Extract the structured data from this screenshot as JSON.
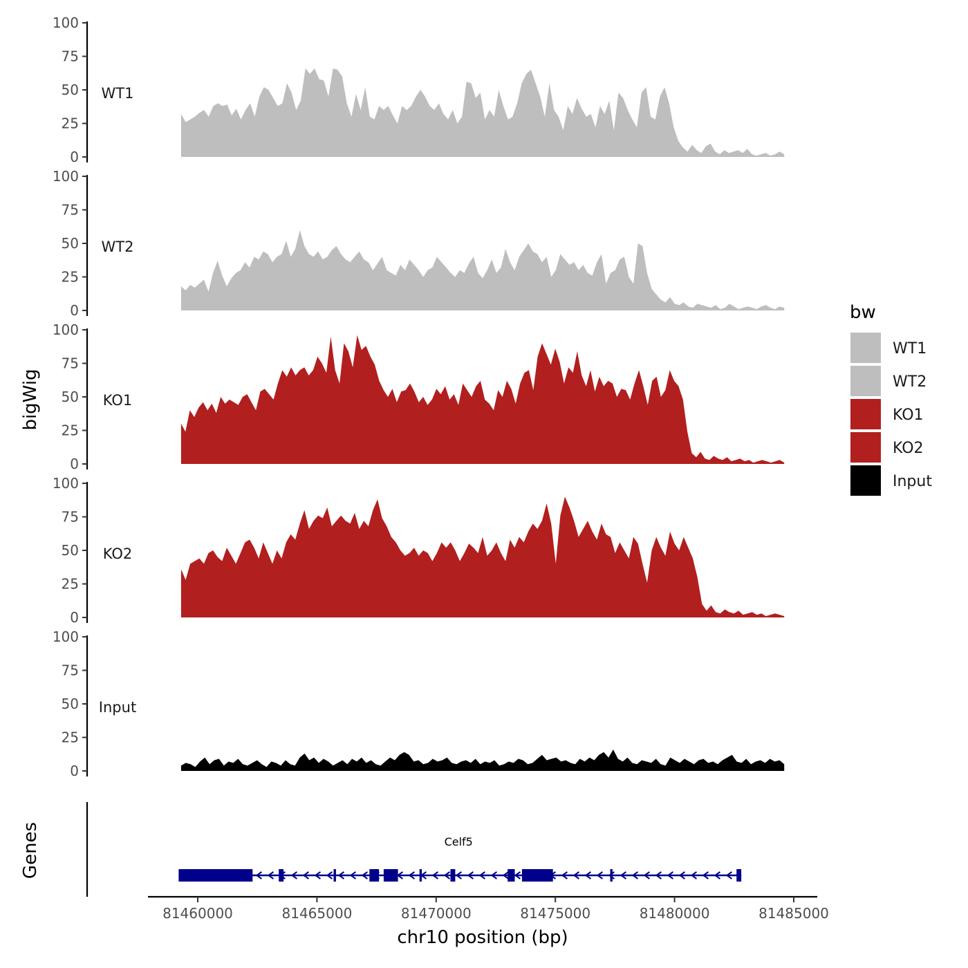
{
  "chart_data": {
    "type": "area",
    "title": "",
    "xlabel": "chr10 position (bp)",
    "ylabel": "bigWig",
    "genes_panel_label": "Genes",
    "xlim": [
      81458500,
      81485500
    ],
    "x_ticks": [
      81460000,
      81465000,
      81470000,
      81475000,
      81480000,
      81485000
    ],
    "x_tick_labels": [
      "81460000",
      "81465000",
      "81470000",
      "81475000",
      "81480000",
      "81485000"
    ],
    "ylim": [
      0,
      100
    ],
    "y_ticks": [
      0,
      25,
      50,
      75,
      100
    ],
    "y_tick_labels": [
      "0",
      "25",
      "50",
      "75",
      "100"
    ],
    "x_start": 81459300,
    "x_end": 81484600,
    "legend": {
      "title": "bw",
      "position": "right",
      "entries": [
        {
          "label": "WT1",
          "color": "#bebebe"
        },
        {
          "label": "WT2",
          "color": "#bebebe"
        },
        {
          "label": "KO1",
          "color": "#b21f1f"
        },
        {
          "label": "KO2",
          "color": "#b21f1f"
        },
        {
          "label": "Input",
          "color": "#000000"
        }
      ]
    },
    "series": [
      {
        "name": "WT1",
        "color": "#bebebe",
        "values": [
          32,
          26,
          28,
          30,
          33,
          35,
          30,
          38,
          40,
          38,
          39,
          31,
          36,
          28,
          35,
          40,
          30,
          45,
          52,
          50,
          44,
          38,
          40,
          55,
          48,
          35,
          42,
          66,
          62,
          66,
          58,
          57,
          45,
          66,
          65,
          60,
          40,
          30,
          47,
          35,
          52,
          30,
          28,
          38,
          35,
          38,
          31,
          25,
          38,
          35,
          38,
          45,
          50,
          45,
          38,
          35,
          40,
          32,
          28,
          35,
          25,
          30,
          56,
          55,
          44,
          48,
          28,
          35,
          30,
          50,
          38,
          28,
          30,
          40,
          55,
          62,
          65,
          55,
          45,
          30,
          55,
          35,
          30,
          20,
          38,
          32,
          44,
          36,
          30,
          32,
          22,
          38,
          32,
          42,
          20,
          48,
          44,
          35,
          28,
          22,
          48,
          52,
          30,
          28,
          45,
          52,
          40,
          22,
          12,
          7,
          4,
          9,
          5,
          3,
          8,
          10,
          4,
          2,
          5,
          3,
          4,
          5,
          3,
          6,
          2,
          1,
          2,
          3,
          1,
          2,
          4,
          2
        ]
      },
      {
        "name": "WT2",
        "color": "#bebebe",
        "values": [
          18,
          15,
          19,
          17,
          20,
          23,
          14,
          28,
          37,
          26,
          18,
          24,
          28,
          30,
          36,
          32,
          40,
          38,
          44,
          42,
          36,
          40,
          42,
          52,
          40,
          46,
          60,
          48,
          42,
          40,
          44,
          38,
          40,
          45,
          48,
          42,
          38,
          36,
          40,
          44,
          38,
          36,
          30,
          35,
          40,
          30,
          28,
          26,
          34,
          30,
          38,
          34,
          30,
          25,
          30,
          32,
          40,
          36,
          32,
          28,
          25,
          30,
          28,
          35,
          40,
          28,
          24,
          30,
          38,
          28,
          32,
          46,
          36,
          30,
          40,
          45,
          50,
          44,
          42,
          36,
          40,
          25,
          30,
          42,
          38,
          34,
          36,
          30,
          34,
          28,
          26,
          36,
          42,
          20,
          28,
          30,
          38,
          40,
          25,
          20,
          50,
          48,
          28,
          16,
          12,
          8,
          6,
          10,
          5,
          4,
          6,
          3,
          2,
          5,
          4,
          3,
          2,
          4,
          1,
          2,
          5,
          3,
          1,
          2,
          3,
          2,
          1,
          3,
          4,
          2,
          1,
          3,
          2
        ]
      },
      {
        "name": "KO1",
        "color": "#b21f1f",
        "values": [
          30,
          24,
          40,
          35,
          42,
          46,
          40,
          45,
          38,
          50,
          45,
          48,
          46,
          44,
          50,
          52,
          46,
          40,
          54,
          56,
          52,
          48,
          60,
          70,
          65,
          72,
          66,
          70,
          72,
          66,
          70,
          80,
          75,
          68,
          95,
          70,
          60,
          90,
          84,
          72,
          96,
          85,
          88,
          80,
          74,
          62,
          55,
          50,
          56,
          46,
          54,
          55,
          60,
          54,
          46,
          50,
          44,
          48,
          56,
          52,
          58,
          48,
          52,
          44,
          60,
          55,
          50,
          58,
          62,
          48,
          45,
          40,
          55,
          50,
          62,
          56,
          45,
          60,
          68,
          70,
          55,
          80,
          90,
          82,
          74,
          86,
          76,
          60,
          72,
          68,
          84,
          66,
          58,
          70,
          54,
          65,
          58,
          62,
          60,
          50,
          56,
          55,
          48,
          60,
          70,
          58,
          44,
          62,
          65,
          50,
          55,
          70,
          62,
          58,
          48,
          24,
          8,
          5,
          9,
          4,
          3,
          6,
          4,
          3,
          5,
          2,
          3,
          4,
          2,
          3,
          1,
          2,
          3,
          2,
          1,
          2,
          3,
          1
        ]
      },
      {
        "name": "KO2",
        "color": "#b21f1f",
        "values": [
          36,
          28,
          40,
          42,
          44,
          40,
          48,
          50,
          45,
          42,
          52,
          46,
          40,
          48,
          56,
          58,
          52,
          44,
          56,
          48,
          40,
          50,
          44,
          56,
          62,
          58,
          70,
          80,
          66,
          72,
          76,
          74,
          82,
          68,
          72,
          76,
          72,
          70,
          78,
          66,
          72,
          68,
          80,
          88,
          74,
          68,
          60,
          56,
          50,
          46,
          48,
          52,
          46,
          50,
          48,
          42,
          48,
          56,
          52,
          56,
          50,
          42,
          48,
          55,
          52,
          48,
          60,
          46,
          50,
          56,
          48,
          42,
          58,
          52,
          60,
          56,
          64,
          70,
          66,
          72,
          85,
          70,
          40,
          76,
          90,
          82,
          72,
          60,
          66,
          72,
          64,
          58,
          70,
          62,
          60,
          48,
          56,
          50,
          44,
          60,
          55,
          40,
          26,
          50,
          60,
          52,
          46,
          64,
          55,
          50,
          60,
          52,
          44,
          30,
          10,
          5,
          9,
          4,
          3,
          6,
          4,
          3,
          5,
          2,
          3,
          4,
          2,
          3,
          1,
          2,
          3,
          2,
          1
        ]
      },
      {
        "name": "Input",
        "color": "#000000",
        "values": [
          4,
          6,
          5,
          3,
          7,
          10,
          5,
          8,
          9,
          4,
          7,
          6,
          9,
          5,
          4,
          6,
          8,
          5,
          3,
          7,
          6,
          4,
          8,
          5,
          4,
          10,
          13,
          8,
          10,
          6,
          9,
          7,
          4,
          6,
          8,
          5,
          9,
          7,
          10,
          6,
          8,
          5,
          4,
          7,
          10,
          8,
          12,
          14,
          12,
          7,
          8,
          5,
          6,
          9,
          7,
          8,
          10,
          6,
          5,
          7,
          8,
          6,
          9,
          5,
          7,
          6,
          8,
          4,
          5,
          7,
          6,
          9,
          8,
          5,
          6,
          9,
          12,
          8,
          9,
          10,
          7,
          8,
          6,
          5,
          9,
          7,
          10,
          8,
          12,
          14,
          10,
          16,
          9,
          7,
          10,
          6,
          5,
          8,
          7,
          6,
          9,
          5,
          4,
          10,
          8,
          6,
          9,
          7,
          5,
          8,
          9,
          6,
          7,
          5,
          8,
          10,
          12,
          7,
          6,
          9,
          5,
          7,
          8,
          6,
          9,
          7,
          8,
          5
        ]
      }
    ],
    "genes": {
      "name": "Celf5",
      "color": "#00008b",
      "start": 81459200,
      "end": 81482800,
      "strand": "-",
      "exons": [
        [
          81459200,
          81462300
        ],
        [
          81463400,
          81463600
        ],
        [
          81465700,
          81465800
        ],
        [
          81467200,
          81467600
        ],
        [
          81467800,
          81468400
        ],
        [
          81469300,
          81469400
        ],
        [
          81470600,
          81470800
        ],
        [
          81473000,
          81473300
        ],
        [
          81473600,
          81474900
        ],
        [
          81477300,
          81477400
        ],
        [
          81482600,
          81482800
        ]
      ]
    }
  }
}
